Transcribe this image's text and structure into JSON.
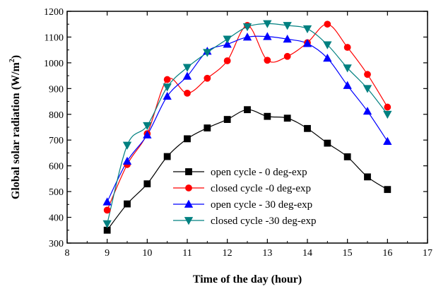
{
  "chart_data": {
    "type": "line",
    "xlabel": "Time of the day (hour)",
    "ylabel_main": "Global solar radiation (W/m",
    "ylabel_sup": "2",
    "ylabel_tail": ")",
    "xlim": [
      8,
      17
    ],
    "ylim": [
      300,
      1200
    ],
    "xticks": [
      "8",
      "9",
      "10",
      "11",
      "12",
      "13",
      "14",
      "15",
      "16",
      "17"
    ],
    "yticks": [
      "300",
      "400",
      "500",
      "600",
      "700",
      "800",
      "900",
      "1000",
      "1100",
      "1200"
    ],
    "grid": false,
    "legend_position": "bottom-center",
    "x": [
      9,
      9.5,
      10,
      10.5,
      11,
      11.5,
      12,
      12.5,
      13,
      13.5,
      14,
      14.5,
      15,
      15.5,
      16
    ],
    "series": [
      {
        "name": "open cycle - 0 deg-exp",
        "color": "#000000",
        "marker": "square",
        "values": [
          350,
          452,
          530,
          636,
          705,
          747,
          780,
          818,
          792,
          785,
          745,
          688,
          635,
          557,
          508
        ]
      },
      {
        "name": "closed cycle -0 deg-exp",
        "color": "#ff0000",
        "marker": "circle",
        "values": [
          428,
          605,
          725,
          935,
          882,
          940,
          1008,
          1145,
          1010,
          1025,
          1078,
          1150,
          1060,
          955,
          828
        ]
      },
      {
        "name": "open cycle - 30 deg-exp",
        "color": "#0000ff",
        "marker": "triangle-up",
        "values": [
          460,
          618,
          720,
          870,
          948,
          1045,
          1072,
          1100,
          1102,
          1092,
          1075,
          1018,
          912,
          812,
          695
        ]
      },
      {
        "name": "closed cycle -30 deg-exp",
        "color": "#008080",
        "marker": "triangle-down",
        "values": [
          375,
          680,
          756,
          906,
          982,
          1040,
          1092,
          1140,
          1152,
          1145,
          1132,
          1070,
          980,
          900,
          800
        ]
      }
    ]
  }
}
